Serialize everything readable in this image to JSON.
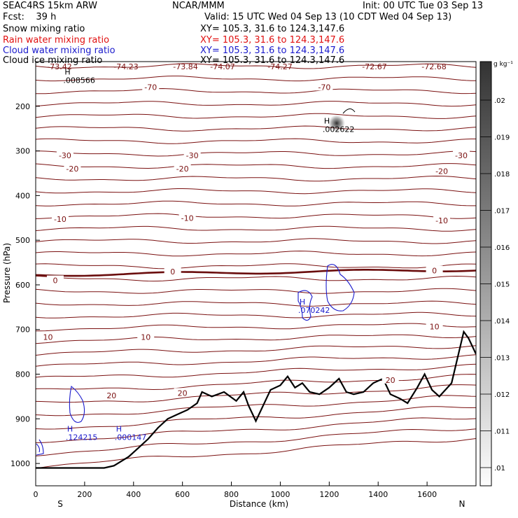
{
  "header": {
    "model": "SEAC4RS 15km ARW",
    "center": "NCAR/MMM",
    "init": "Init: 00 UTC Tue 03 Sep 13",
    "fcst": "Fcst:    39 h",
    "valid": "Valid: 15 UTC Wed 04 Sep 13 (10 CDT Wed 04 Sep 13)",
    "fields": [
      {
        "label": "Snow mixing ratio",
        "xy": "XY= 105.3, 31.6 to 124.3,147.6",
        "color": "#000000"
      },
      {
        "label": "Rain water mixing ratio",
        "xy": "XY= 105.3, 31.6 to 124.3,147.6",
        "color": "#e01010"
      },
      {
        "label": "Cloud water mixing ratio",
        "xy": "XY= 105.3, 31.6 to 124.3,147.6",
        "color": "#1a1acc"
      },
      {
        "label": "Cloud ice mixing ratio",
        "xy": "XY= 105.3, 31.6 to 124.3,147.6",
        "color": "#000000"
      }
    ]
  },
  "chart_data": {
    "type": "contour cross-section",
    "xlabel": "Distance (km)",
    "ylabel": "Pressure (hPa)",
    "xlim": [
      0,
      1800
    ],
    "ylim": [
      1050,
      100
    ],
    "x_ticks": [
      0,
      200,
      400,
      600,
      800,
      1000,
      1200,
      1400,
      1600
    ],
    "y_ticks": [
      200,
      300,
      400,
      500,
      600,
      700,
      800,
      900,
      1000
    ],
    "y_tick_labels": [
      "200",
      "300",
      "400",
      "500",
      "600",
      "700",
      "800",
      "900",
      "1000"
    ],
    "end_labels": {
      "left": "S",
      "right": "N"
    },
    "colorbar": {
      "unit": "g kg⁻¹",
      "tick_labels": [
        ".02",
        ".019",
        ".018",
        ".017",
        ".016",
        ".015",
        ".014",
        ".013",
        ".012",
        ".011",
        ".01"
      ]
    },
    "temperature_isotherms": [
      {
        "label": "-70",
        "label_positions": [
          [
            470,
            157
          ],
          [
            1180,
            157
          ]
        ]
      },
      {
        "label": "-30",
        "label_positions": [
          [
            120,
            310
          ],
          [
            640,
            310
          ],
          [
            1740,
            310
          ]
        ]
      },
      {
        "label": "-20",
        "label_positions": [
          [
            150,
            340
          ],
          [
            600,
            340
          ],
          [
            1660,
            345
          ]
        ]
      },
      {
        "label": "-10",
        "label_positions": [
          [
            100,
            453
          ],
          [
            620,
            450
          ],
          [
            1660,
            456
          ]
        ]
      },
      {
        "label": "0",
        "label_positions": [
          [
            80,
            590
          ],
          [
            560,
            570
          ],
          [
            1630,
            568
          ]
        ]
      },
      {
        "label": "10",
        "label_positions": [
          [
            50,
            717
          ],
          [
            450,
            717
          ],
          [
            1630,
            693
          ]
        ]
      },
      {
        "label": "20",
        "label_positions": [
          [
            310,
            848
          ],
          [
            600,
            842
          ],
          [
            1450,
            813
          ]
        ]
      }
    ],
    "top_temperature_labels": [
      "-73.42",
      "-74.23",
      "-73.84",
      "-74.07",
      "-74.27",
      "-72.67",
      "-72.68"
    ],
    "maxima": [
      {
        "label": "H",
        "value": ".008566",
        "x": 130,
        "p": 135,
        "field": "snow"
      },
      {
        "label": "H",
        "value": ".002622",
        "x": 1190,
        "p": 245,
        "field": "cloud ice"
      },
      {
        "label": "H",
        "value": ".070242",
        "x": 1090,
        "p": 650,
        "field": "cloud water"
      },
      {
        "label": "H",
        "value": ".124215",
        "x": 140,
        "p": 935,
        "field": "cloud water"
      },
      {
        "label": "H",
        "value": ".000147",
        "x": 340,
        "p": 935,
        "field": "cloud water"
      }
    ],
    "terrain": {
      "x": [
        0,
        100,
        200,
        280,
        320,
        380,
        420,
        460,
        500,
        540,
        580,
        620,
        660,
        680,
        720,
        770,
        820,
        850,
        870,
        900,
        930,
        960,
        1000,
        1030,
        1060,
        1090,
        1120,
        1160,
        1200,
        1240,
        1270,
        1300,
        1340,
        1380,
        1420,
        1450,
        1490,
        1520,
        1560,
        1590,
        1620,
        1650,
        1700,
        1750,
        1770,
        1800
      ],
      "p": [
        1010,
        1010,
        1010,
        1010,
        1005,
        985,
        965,
        945,
        920,
        900,
        890,
        880,
        865,
        840,
        850,
        840,
        860,
        840,
        870,
        905,
        870,
        835,
        825,
        805,
        830,
        820,
        840,
        845,
        830,
        810,
        840,
        845,
        840,
        820,
        810,
        845,
        855,
        865,
        830,
        800,
        835,
        850,
        820,
        705,
        720,
        755
      ]
    }
  }
}
